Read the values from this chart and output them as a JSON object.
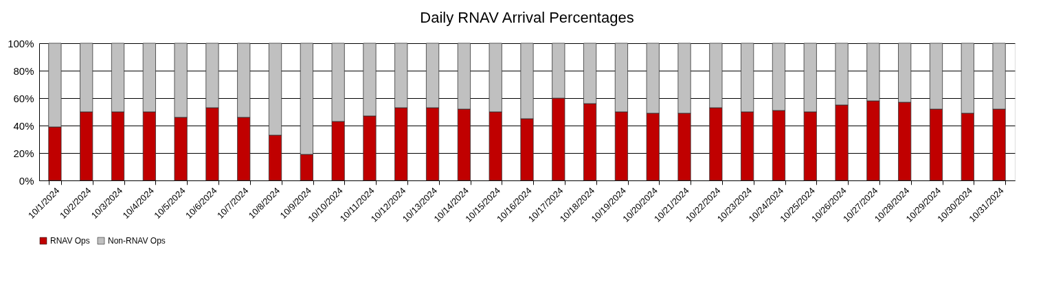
{
  "chart_data": {
    "type": "bar",
    "title": "Daily RNAV Arrival Percentages",
    "stacked": true,
    "categories": [
      "10/1/2024",
      "10/2/2024",
      "10/3/2024",
      "10/4/2024",
      "10/5/2024",
      "10/6/2024",
      "10/7/2024",
      "10/8/2024",
      "10/9/2024",
      "10/10/2024",
      "10/11/2024",
      "10/12/2024",
      "10/13/2024",
      "10/14/2024",
      "10/15/2024",
      "10/16/2024",
      "10/17/2024",
      "10/18/2024",
      "10/19/2024",
      "10/20/2024",
      "10/21/2024",
      "10/22/2024",
      "10/23/2024",
      "10/24/2024",
      "10/25/2024",
      "10/26/2024",
      "10/27/2024",
      "10/28/2024",
      "10/29/2024",
      "10/30/2024",
      "10/31/2024"
    ],
    "series": [
      {
        "name": "RNAV Ops",
        "color": "#c00000",
        "values": [
          39,
          50,
          50,
          50,
          46,
          53,
          46,
          33,
          19,
          43,
          47,
          53,
          53,
          52,
          50,
          45,
          60,
          56,
          50,
          49,
          49,
          53,
          50,
          51,
          50,
          55,
          58,
          57,
          52,
          49,
          52
        ]
      },
      {
        "name": "Non-RNAV Ops",
        "color": "#c0c0c0",
        "values": [
          61,
          50,
          50,
          50,
          54,
          47,
          54,
          67,
          81,
          57,
          53,
          47,
          47,
          48,
          50,
          55,
          40,
          44,
          50,
          51,
          51,
          47,
          50,
          49,
          50,
          45,
          42,
          43,
          48,
          51,
          48
        ]
      }
    ],
    "ylim": [
      0,
      100
    ],
    "yticks": [
      {
        "value": 0,
        "label": "0%"
      },
      {
        "value": 20,
        "label": "20%"
      },
      {
        "value": 40,
        "label": "40%"
      },
      {
        "value": 60,
        "label": "60%"
      },
      {
        "value": 80,
        "label": "80%"
      },
      {
        "value": 100,
        "label": "100%"
      }
    ],
    "grid": "y",
    "legend": "bottom"
  }
}
